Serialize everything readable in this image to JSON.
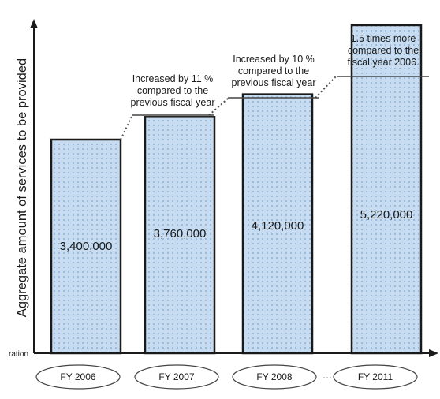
{
  "chart_data": {
    "type": "bar",
    "categories": [
      "FY 2006",
      "FY 2007",
      "FY 2008",
      "FY 2011"
    ],
    "values": [
      3400000,
      3760000,
      4120000,
      5220000
    ],
    "value_labels": [
      "3,400,000",
      "3,760,000",
      "4,120,000",
      "5,220,000"
    ],
    "ylabel": "Aggregate amount of services to be provided",
    "axis_side_text": "ration",
    "ellipsis": "···",
    "annotations": [
      [
        "Increased by 11 %",
        "compared to the",
        "previous fiscal year"
      ],
      [
        "Increased by 10 %",
        "compared to the",
        "previous fiscal year"
      ],
      [
        "1.5 times more",
        "compared to the",
        "fiscal year 2006."
      ]
    ],
    "colors": {
      "bar_fill": "#c7dcf0",
      "bar_dots": "#8fb0d3",
      "outline": "#1a1a1a",
      "connector": "#555555"
    }
  }
}
